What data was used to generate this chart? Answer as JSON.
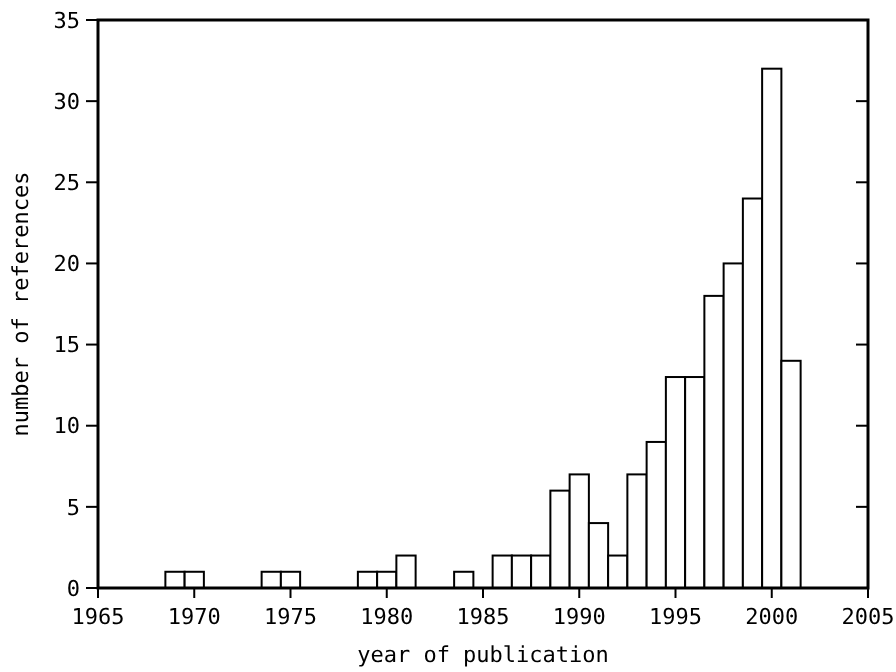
{
  "chart_data": {
    "type": "histogram",
    "xlabel": "year of publication",
    "ylabel": "number of references",
    "bins": [
      1968.5,
      1969.5,
      1970.5,
      1971.5,
      1972.5,
      1973.5,
      1974.5,
      1975.5,
      1976.5,
      1977.5,
      1978.5,
      1979.5,
      1980.5,
      1981.5,
      1982.5,
      1983.5,
      1984.5,
      1985.5,
      1986.5,
      1987.5,
      1988.5,
      1989.5,
      1990.5,
      1991.5,
      1992.5,
      1993.5,
      1994.5,
      1995.5,
      1996.5,
      1997.5,
      1998.5,
      1999.5,
      2000.5,
      2001.5
    ],
    "values": [
      1,
      1,
      0,
      0,
      0,
      1,
      1,
      0,
      0,
      0,
      1,
      1,
      2,
      0,
      0,
      1,
      0,
      2,
      2,
      2,
      6,
      7,
      4,
      2,
      7,
      9,
      13,
      13,
      18,
      20,
      24,
      32,
      14
    ],
    "color": "#ffffff",
    "xlim": [
      1965,
      2005
    ],
    "xticks": [
      1965,
      1970,
      1975,
      1980,
      1985,
      1990,
      1995,
      2000,
      2005
    ],
    "ylim": [
      0,
      35
    ],
    "yticks": [
      0,
      5,
      10,
      15,
      20,
      25,
      30,
      35
    ],
    "grid": false
  }
}
